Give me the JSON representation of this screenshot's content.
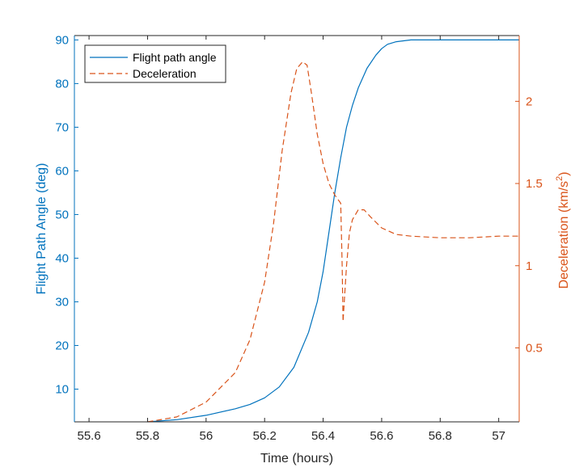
{
  "chart_data": {
    "type": "line",
    "title": "",
    "xlabel": "Time (hours)",
    "ylabel_left": "Flight Path Angle (deg)",
    "ylabel_right_prefix": "Deceleration (km/s",
    "ylabel_right_sup": "2",
    "ylabel_right_suffix": ")",
    "xlim": [
      55.55,
      57.07
    ],
    "ylim_left": [
      2.5,
      91
    ],
    "ylim_right": [
      0.05,
      2.4
    ],
    "x_ticks": [
      55.6,
      55.8,
      56,
      56.2,
      56.4,
      56.6,
      56.8,
      57
    ],
    "x_tick_labels": [
      "55.6",
      "55.8",
      "56",
      "56.2",
      "56.4",
      "56.6",
      "56.8",
      "57"
    ],
    "y_left_ticks": [
      10,
      20,
      30,
      40,
      50,
      60,
      70,
      80,
      90
    ],
    "y_left_tick_labels": [
      "10",
      "20",
      "30",
      "40",
      "50",
      "60",
      "70",
      "80",
      "90"
    ],
    "y_right_ticks": [
      0.5,
      1,
      1.5,
      2
    ],
    "y_right_tick_labels": [
      "0.5",
      "1",
      "1.5",
      "2"
    ],
    "legend_position": "top-left",
    "grid": false,
    "colors": {
      "left": "#0072BD",
      "right": "#D95319",
      "axis": "#262626"
    },
    "series": [
      {
        "name": "Flight path angle",
        "axis": "left",
        "style": "solid",
        "color": "#0072BD",
        "x": [
          55.8,
          55.9,
          56.0,
          56.1,
          56.15,
          56.2,
          56.25,
          56.3,
          56.35,
          56.38,
          56.4,
          56.42,
          56.44,
          56.46,
          56.48,
          56.5,
          56.52,
          56.55,
          56.58,
          56.6,
          56.62,
          56.65,
          56.7,
          56.8,
          56.9,
          57.0,
          57.07
        ],
        "y": [
          2.5,
          3.0,
          4.0,
          5.5,
          6.5,
          8.0,
          10.5,
          15.0,
          23.0,
          30.0,
          37.0,
          46.0,
          55.0,
          63.0,
          70.0,
          75.0,
          79.0,
          83.5,
          86.5,
          88.0,
          89.0,
          89.6,
          90.0,
          90.0,
          90.0,
          90.0,
          90.0
        ]
      },
      {
        "name": "Deceleration",
        "axis": "right",
        "style": "dashed",
        "color": "#D95319",
        "x": [
          55.8,
          55.9,
          56.0,
          56.1,
          56.15,
          56.2,
          56.23,
          56.26,
          56.29,
          56.31,
          56.33,
          56.345,
          56.36,
          56.38,
          56.4,
          56.42,
          56.44,
          56.46,
          56.465,
          56.468,
          56.47,
          56.48,
          56.49,
          56.5,
          56.52,
          56.54,
          56.56,
          56.6,
          56.65,
          56.7,
          56.8,
          56.9,
          57.0,
          57.07
        ],
        "y": [
          0.05,
          0.08,
          0.17,
          0.35,
          0.55,
          0.9,
          1.25,
          1.7,
          2.05,
          2.2,
          2.24,
          2.22,
          2.05,
          1.8,
          1.62,
          1.5,
          1.43,
          1.38,
          1.0,
          0.66,
          0.72,
          1.0,
          1.2,
          1.28,
          1.34,
          1.34,
          1.3,
          1.23,
          1.19,
          1.18,
          1.17,
          1.17,
          1.18,
          1.18
        ]
      }
    ]
  }
}
